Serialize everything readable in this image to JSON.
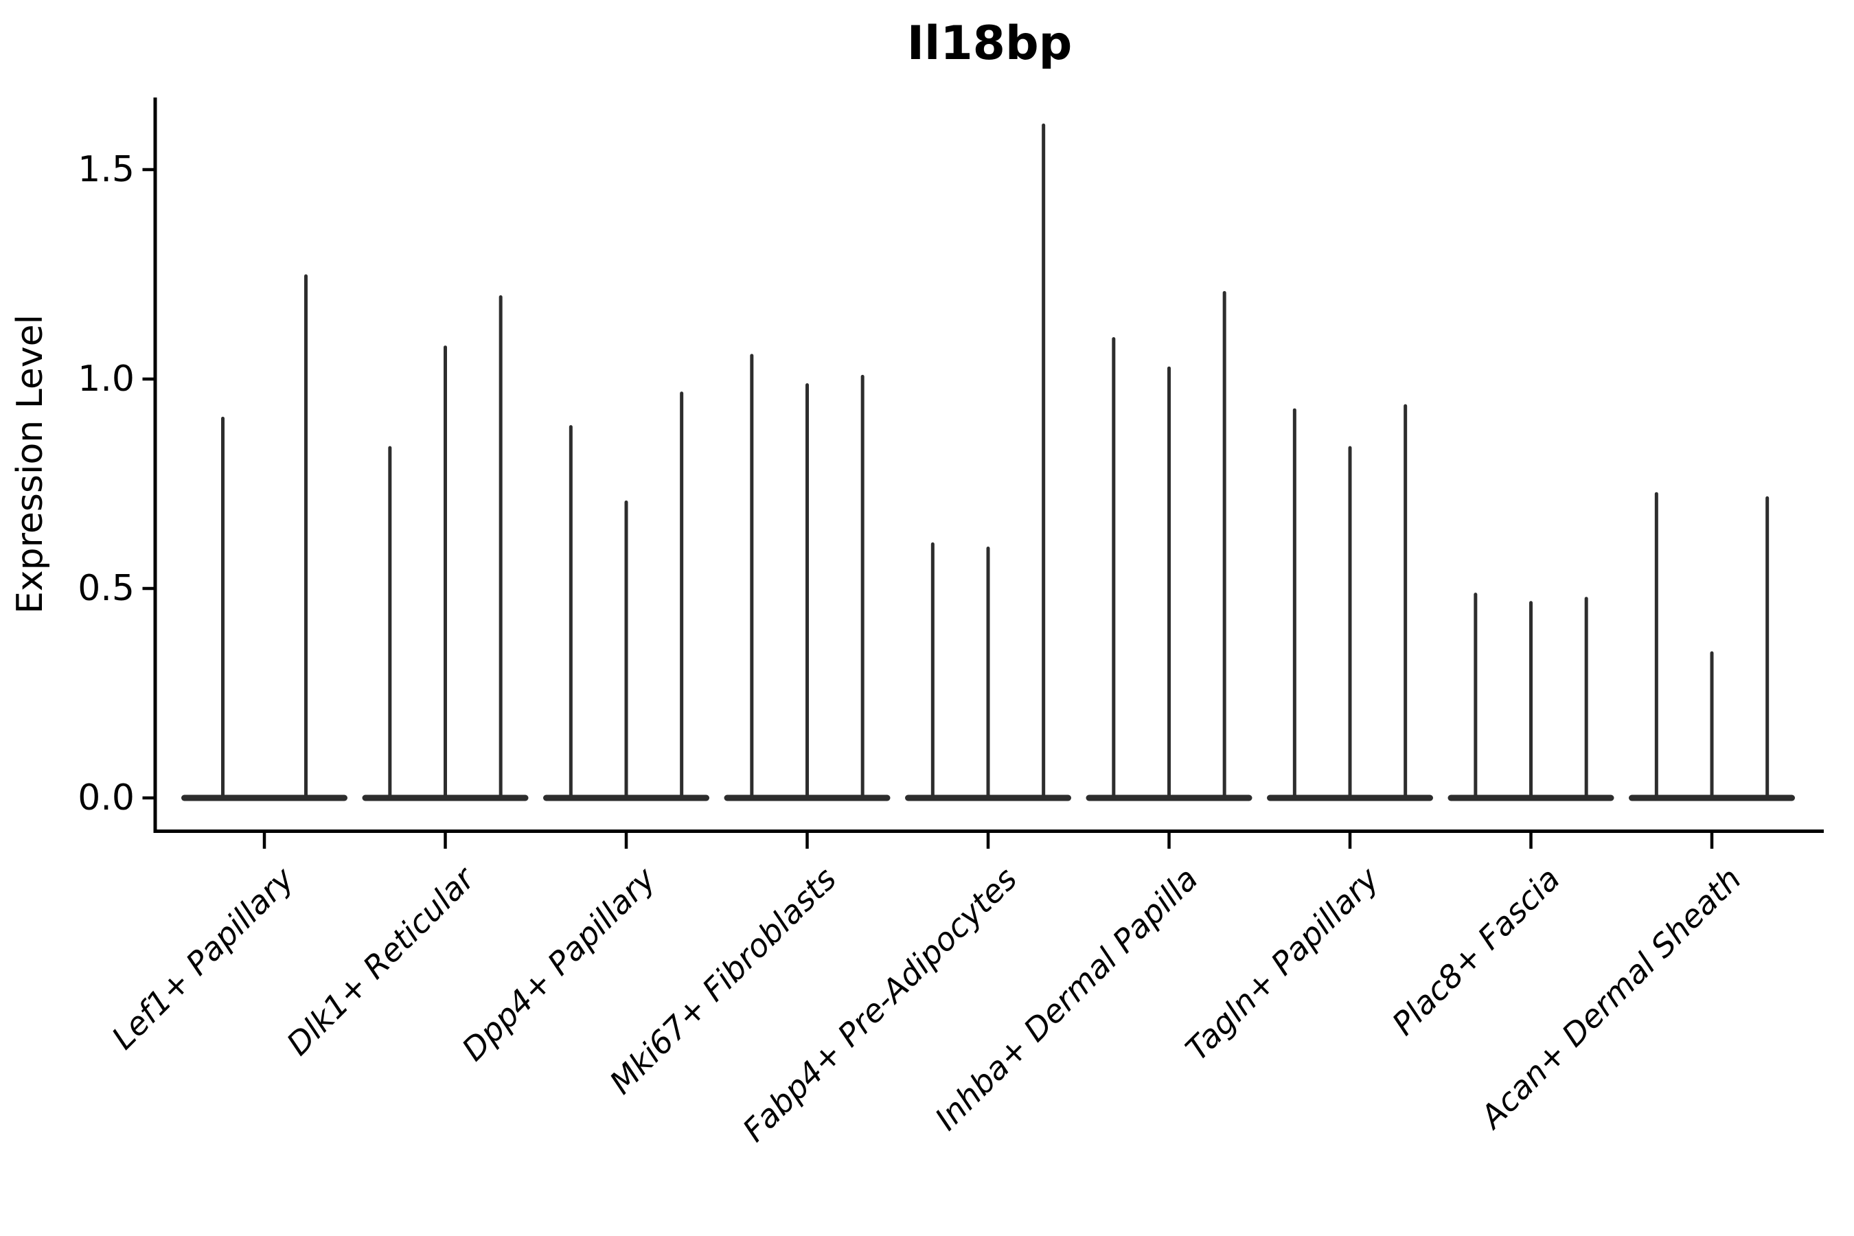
{
  "chart_data": {
    "type": "violin",
    "title": "Il18bp",
    "xlabel": "",
    "ylabel": "Expression Level",
    "ytick_labels": [
      "0.0",
      "0.5",
      "1.0",
      "1.5"
    ],
    "ytick_values": [
      0.0,
      0.5,
      1.0,
      1.5
    ],
    "ylim": [
      -0.08,
      1.67
    ],
    "grid": false,
    "legend": "none",
    "spines": [
      "left",
      "bottom"
    ],
    "categories": [
      "Lef1+ Papillary",
      "Dlk1+ Reticular",
      "Dpp4+ Papillary",
      "Mki67+ Fibroblasts",
      "Fabp4+ Pre-Adipocytes",
      "Inhba+ Dermal Papilla",
      "Tagln+ Papillary",
      "Plac8+ Fascia",
      "Acan+ Dermal Sheath"
    ],
    "violins": [
      {
        "category": "Lef1+ Papillary",
        "spike_peaks": [
          0.91,
          1.25
        ]
      },
      {
        "category": "Dlk1+ Reticular",
        "spike_peaks": [
          0.84,
          1.08,
          1.2
        ]
      },
      {
        "category": "Dpp4+ Papillary",
        "spike_peaks": [
          0.89,
          0.71,
          0.97
        ]
      },
      {
        "category": "Mki67+ Fibroblasts",
        "spike_peaks": [
          1.06,
          0.99,
          1.01
        ]
      },
      {
        "category": "Fabp4+ Pre-Adipocytes",
        "spike_peaks": [
          0.61,
          0.6,
          1.61
        ]
      },
      {
        "category": "Inhba+ Dermal Papilla",
        "spike_peaks": [
          1.1,
          1.03,
          1.21
        ]
      },
      {
        "category": "Tagln+ Papillary",
        "spike_peaks": [
          0.93,
          0.84,
          0.94
        ]
      },
      {
        "category": "Plac8+ Fascia",
        "spike_peaks": [
          0.49,
          0.47,
          0.48
        ]
      },
      {
        "category": "Acan+ Dermal Sheath",
        "spike_peaks": [
          0.73,
          0.35,
          0.72
        ]
      }
    ],
    "colors": {
      "violin": "#2d2d2d",
      "axis": "#000000",
      "text": "#000000",
      "background": "#ffffff"
    }
  }
}
